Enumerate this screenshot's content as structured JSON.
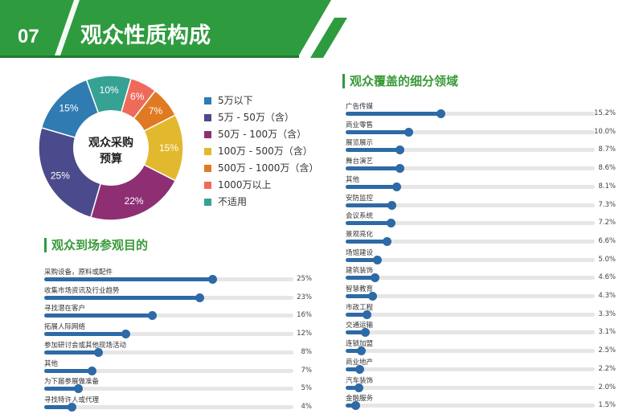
{
  "header": {
    "number": "07",
    "title": "观众性质构成"
  },
  "budget_chart": {
    "center_label_line1": "观众采购",
    "center_label_line2": "预算"
  },
  "purpose_section": {
    "title": "观众到场参观目的"
  },
  "coverage_section": {
    "title": "观众覆盖的细分领域"
  },
  "colors": {
    "brand_green": "#2e9b3f",
    "bar_blue": "#2d6aa6"
  },
  "chart_data": [
    {
      "type": "pie",
      "title": "观众采购预算",
      "categories": [
        "5万以下",
        "5万 - 50万（含）",
        "50万 - 100万（含）",
        "100万 - 500万（含）",
        "500万 - 1000万（含）",
        "1000万以上",
        "不适用"
      ],
      "values": [
        15,
        25,
        22,
        15,
        7,
        6,
        10
      ],
      "labels": [
        "15%",
        "25%",
        "22%",
        "15%",
        "7%",
        "6%",
        "10%"
      ],
      "colors": [
        "#2f7bb2",
        "#4a4a8c",
        "#8e2f73",
        "#e2b92e",
        "#e07a22",
        "#ee6b5c",
        "#35a294"
      ],
      "legend_position": "right"
    },
    {
      "type": "bar",
      "title": "观众到场参观目的",
      "categories": [
        "采购设备，原料或配件",
        "收集市场资讯及行业趋势",
        "寻找潜在客户",
        "拓展人际网络",
        "参加研讨会或其他现场活动",
        "其他",
        "为下届参展做准备",
        "寻找特许人或代理"
      ],
      "values": [
        25,
        23,
        16,
        12,
        8,
        7,
        5,
        4
      ],
      "labels": [
        "25%",
        "23%",
        "16%",
        "12%",
        "8%",
        "7%",
        "5%",
        "4%"
      ],
      "xlim": [
        0,
        37
      ]
    },
    {
      "type": "bar",
      "title": "观众覆盖的细分领域",
      "categories": [
        "广告传媒",
        "商业零售",
        "展览展示",
        "舞台演艺",
        "其他",
        "安防监控",
        "会议系统",
        "景观亮化",
        "场馆建设",
        "建筑装饰",
        "智慧教育",
        "市政工程",
        "交通运输",
        "连锁加盟",
        "商业地产",
        "汽车装饰",
        "金融服务"
      ],
      "values": [
        15.2,
        10.0,
        8.7,
        8.6,
        8.1,
        7.3,
        7.2,
        6.6,
        5.0,
        4.6,
        4.3,
        3.3,
        3.1,
        2.5,
        2.2,
        2.0,
        1.5
      ],
      "labels": [
        "15.2%",
        "10.0%",
        "8.7%",
        "8.6%",
        "8.1%",
        "7.3%",
        "7.2%",
        "6.6%",
        "5.0%",
        "4.6%",
        "4.3%",
        "3.3%",
        "3.1%",
        "2.5%",
        "2.2%",
        "2.0%",
        "1.5%"
      ],
      "xlim": [
        0,
        40
      ]
    }
  ]
}
